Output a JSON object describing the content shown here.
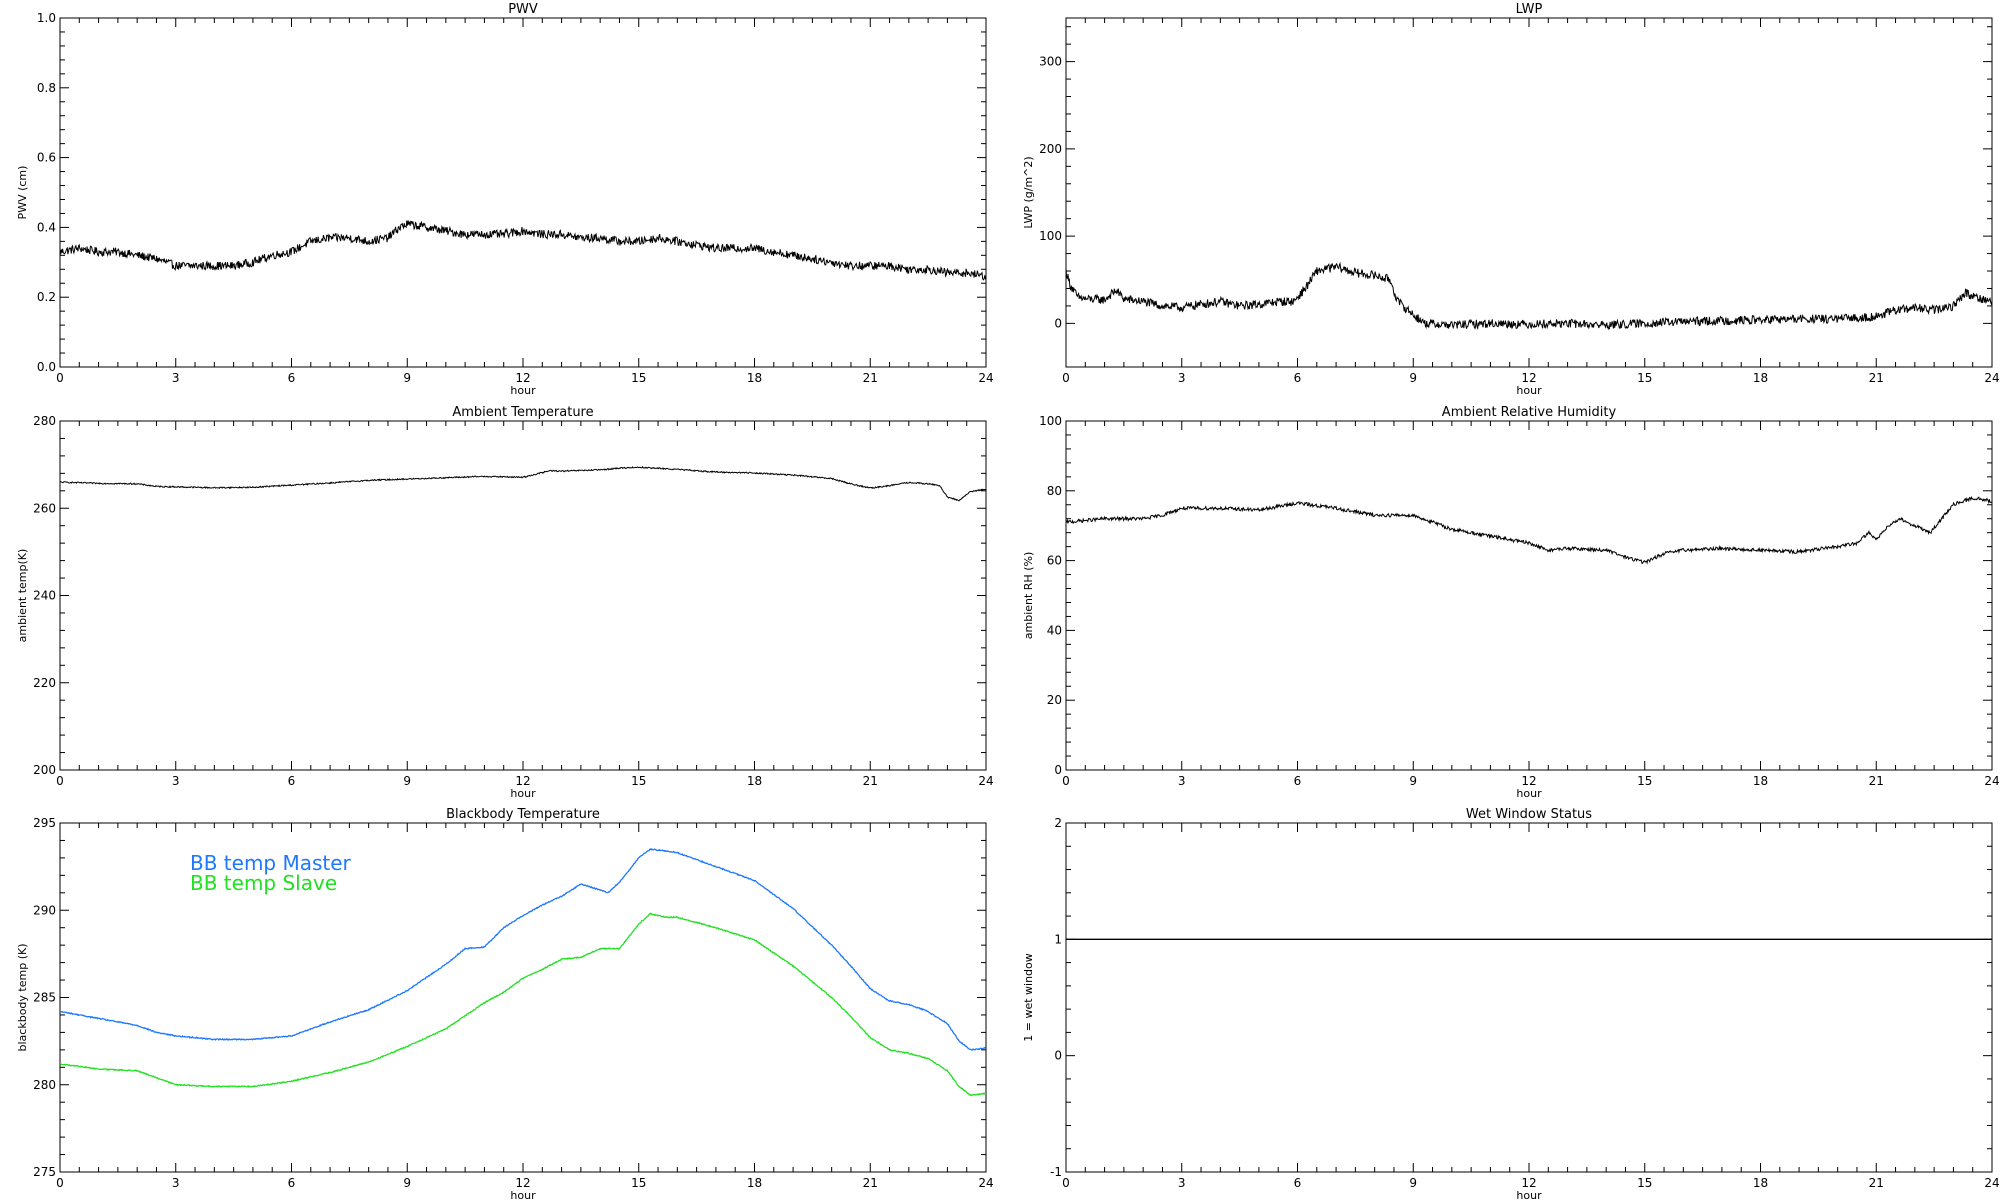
{
  "chart_data": [
    {
      "id": "pwv",
      "type": "line",
      "title": "PWV",
      "xlabel": "hour",
      "ylabel": "PWV (cm)",
      "xlim": [
        0,
        24
      ],
      "ylim": [
        0,
        1.0
      ],
      "xticks": [
        "0",
        "3",
        "6",
        "9",
        "12",
        "15",
        "18",
        "21",
        "24"
      ],
      "yticks": [
        "0.0",
        "0.2",
        "0.4",
        "0.6",
        "0.8",
        "1.0"
      ],
      "noise": 0.012,
      "series": [
        {
          "color": "#000000",
          "x": [
            0,
            0.5,
            1,
            1.5,
            2,
            2.5,
            3,
            3.5,
            4,
            4.5,
            5,
            5.5,
            6,
            6.5,
            7,
            7.5,
            8,
            8.5,
            8.8,
            9,
            9.5,
            10,
            10.5,
            11,
            11.5,
            12,
            12.5,
            13,
            13.5,
            14,
            14.5,
            15,
            15.5,
            16,
            16.5,
            17,
            17.5,
            18,
            18.5,
            19,
            19.5,
            20,
            20.5,
            21,
            21.5,
            22,
            22.5,
            23,
            23.5,
            24
          ],
          "y": [
            0.33,
            0.34,
            0.33,
            0.33,
            0.32,
            0.31,
            0.29,
            0.29,
            0.29,
            0.29,
            0.3,
            0.32,
            0.33,
            0.36,
            0.37,
            0.37,
            0.36,
            0.37,
            0.4,
            0.41,
            0.4,
            0.39,
            0.38,
            0.38,
            0.38,
            0.39,
            0.38,
            0.38,
            0.37,
            0.37,
            0.36,
            0.36,
            0.37,
            0.36,
            0.35,
            0.34,
            0.34,
            0.34,
            0.33,
            0.32,
            0.31,
            0.3,
            0.29,
            0.29,
            0.29,
            0.28,
            0.28,
            0.27,
            0.27,
            0.26
          ]
        }
      ]
    },
    {
      "id": "lwp",
      "type": "line",
      "title": "LWP",
      "xlabel": "hour",
      "ylabel": "LWP (g/m^2)",
      "xlim": [
        0,
        24
      ],
      "ylim": [
        -50,
        350
      ],
      "xticks": [
        "0",
        "3",
        "6",
        "9",
        "12",
        "15",
        "18",
        "21",
        "24"
      ],
      "yticks": [
        "0",
        "100",
        "200",
        "300"
      ],
      "noise": 5,
      "series": [
        {
          "color": "#000000",
          "x": [
            0,
            0.1,
            0.3,
            0.5,
            1,
            1.3,
            1.5,
            2,
            2.5,
            3,
            3.5,
            4,
            4.5,
            5,
            5.5,
            5.9,
            6.2,
            6.5,
            7,
            7.5,
            8,
            8.4,
            8.6,
            9,
            9.3,
            10,
            11,
            12,
            13,
            14,
            15,
            16,
            17,
            18,
            19,
            20,
            21,
            21.5,
            22,
            22.5,
            23,
            23.3,
            23.6,
            24
          ],
          "y": [
            60,
            45,
            30,
            28,
            27,
            38,
            28,
            25,
            20,
            18,
            22,
            25,
            20,
            22,
            25,
            25,
            40,
            60,
            65,
            58,
            55,
            50,
            25,
            10,
            0,
            -2,
            0,
            -1,
            0,
            -2,
            0,
            2,
            3,
            4,
            5,
            5,
            8,
            15,
            18,
            15,
            20,
            35,
            30,
            25
          ]
        }
      ]
    },
    {
      "id": "temp",
      "type": "line",
      "title": "Ambient Temperature",
      "xlabel": "hour",
      "ylabel": "ambient temp(K)",
      "xlim": [
        0,
        24
      ],
      "ylim": [
        200,
        280
      ],
      "xticks": [
        "0",
        "3",
        "6",
        "9",
        "12",
        "15",
        "18",
        "21",
        "24"
      ],
      "yticks": [
        "200",
        "220",
        "240",
        "260",
        "280"
      ],
      "noise": 0.15,
      "series": [
        {
          "color": "#000000",
          "x": [
            0,
            1,
            2,
            2.5,
            3,
            4,
            5,
            6,
            7,
            8,
            9,
            10,
            11,
            12,
            12.7,
            13,
            14,
            14.5,
            15,
            16,
            17,
            18,
            19,
            19.5,
            20,
            20.5,
            21,
            21.5,
            22,
            22.5,
            22.8,
            23,
            23.3,
            23.6,
            24
          ],
          "y": [
            266,
            265.7,
            265.6,
            265,
            264.9,
            264.7,
            264.8,
            265.3,
            265.8,
            266.4,
            266.7,
            267,
            267.3,
            267.1,
            268.6,
            268.5,
            268.8,
            269.2,
            269.4,
            268.9,
            268.3,
            268.1,
            267.6,
            267.2,
            266.8,
            265.6,
            264.6,
            265.2,
            265.9,
            265.6,
            265.2,
            262.5,
            261.8,
            263.8,
            264.4
          ]
        }
      ]
    },
    {
      "id": "rh",
      "type": "line",
      "title": "Ambient Relative Humidity",
      "xlabel": "hour",
      "ylabel": "ambient RH (%)",
      "xlim": [
        0,
        24
      ],
      "ylim": [
        0,
        100
      ],
      "xticks": [
        "0",
        "3",
        "6",
        "9",
        "12",
        "15",
        "18",
        "21",
        "24"
      ],
      "yticks": [
        "0",
        "20",
        "40",
        "60",
        "80",
        "100"
      ],
      "noise": 0.5,
      "series": [
        {
          "color": "#000000",
          "x": [
            0,
            1,
            2,
            2.5,
            3,
            4,
            5,
            6,
            7,
            8,
            9,
            10,
            11,
            12,
            12.5,
            13,
            14,
            14.5,
            15,
            15.5,
            16,
            17,
            18,
            19,
            20,
            20.5,
            20.8,
            21,
            21.3,
            21.6,
            22,
            22.4,
            22.7,
            23,
            23.5,
            24
          ],
          "y": [
            71,
            72,
            72,
            73,
            75,
            75,
            74.5,
            76.5,
            75,
            73,
            73,
            69,
            67,
            65,
            63,
            63.5,
            63,
            61,
            59.5,
            62,
            63,
            63.5,
            63,
            62.5,
            64,
            65,
            68,
            66,
            70,
            72,
            70,
            68,
            72,
            76,
            78,
            77
          ]
        }
      ]
    },
    {
      "id": "bb",
      "type": "line",
      "title": "Blackbody Temperature",
      "xlabel": "hour",
      "ylabel": "blackbody temp (K)",
      "xlim": [
        0,
        24
      ],
      "ylim": [
        275,
        295
      ],
      "xticks": [
        "0",
        "3",
        "6",
        "9",
        "12",
        "15",
        "18",
        "21",
        "24"
      ],
      "yticks": [
        "275",
        "280",
        "285",
        "290",
        "295"
      ],
      "noise": 0.03,
      "legend": [
        "BB temp Master",
        "BB temp Slave"
      ],
      "series": [
        {
          "name": "BB temp Master",
          "color": "#1e78ff",
          "x": [
            0,
            1,
            2,
            2.5,
            3,
            4,
            5,
            6,
            7,
            8,
            9,
            10,
            10.5,
            11,
            11.5,
            12,
            12.5,
            13,
            13.5,
            13.8,
            14.2,
            14.5,
            15,
            15.3,
            15.7,
            16,
            17,
            18,
            19,
            20,
            20.5,
            21,
            21.5,
            22,
            22.5,
            23,
            23.3,
            23.6,
            24
          ],
          "y": [
            284.2,
            283.8,
            283.4,
            283.0,
            282.8,
            282.6,
            282.6,
            282.8,
            283.6,
            284.3,
            285.4,
            286.9,
            287.8,
            287.9,
            289.0,
            289.7,
            290.3,
            290.8,
            291.5,
            291.3,
            291.0,
            291.6,
            293.0,
            293.5,
            293.4,
            293.3,
            292.5,
            291.7,
            290.1,
            288.0,
            286.8,
            285.5,
            284.8,
            284.6,
            284.2,
            283.5,
            282.5,
            282.0,
            282.1
          ]
        },
        {
          "name": "BB temp Slave",
          "color": "#22e022",
          "x": [
            0,
            1,
            2,
            2.5,
            3,
            4,
            5,
            6,
            7,
            8,
            9,
            10,
            11,
            11.5,
            12,
            12.5,
            13,
            13.5,
            14,
            14.5,
            15,
            15.3,
            15.7,
            16,
            17,
            18,
            19,
            20,
            20.5,
            21,
            21.5,
            22,
            22.5,
            23,
            23.3,
            23.6,
            24
          ],
          "y": [
            281.2,
            280.9,
            280.8,
            280.4,
            280.0,
            279.9,
            279.9,
            280.2,
            280.7,
            281.3,
            282.2,
            283.2,
            284.7,
            285.3,
            286.1,
            286.6,
            287.2,
            287.3,
            287.8,
            287.8,
            289.2,
            289.8,
            289.6,
            289.6,
            289.0,
            288.3,
            286.8,
            285.0,
            283.9,
            282.7,
            282.0,
            281.8,
            281.5,
            280.8,
            279.9,
            279.4,
            279.5
          ]
        }
      ]
    },
    {
      "id": "wet",
      "type": "line",
      "title": "Wet Window Status",
      "xlabel": "hour",
      "ylabel": "1 = wet window",
      "xlim": [
        0,
        24
      ],
      "ylim": [
        -1,
        2
      ],
      "xticks": [
        "0",
        "3",
        "6",
        "9",
        "12",
        "15",
        "18",
        "21",
        "24"
      ],
      "yticks": [
        "-1",
        "0",
        "1",
        "2"
      ],
      "noise": 0,
      "series": [
        {
          "color": "#000000",
          "x": [
            0,
            24
          ],
          "y": [
            1,
            1
          ]
        }
      ]
    }
  ]
}
